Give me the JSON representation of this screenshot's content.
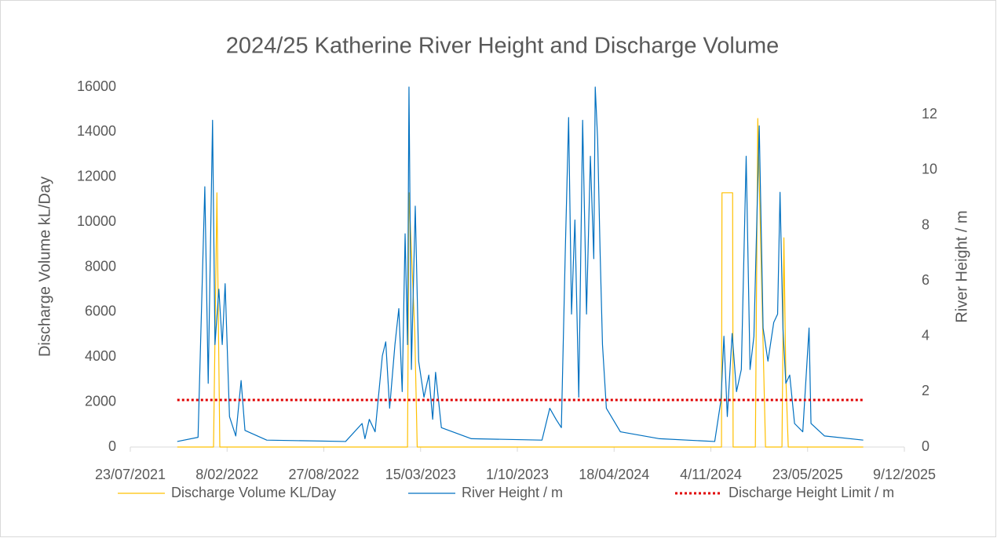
{
  "chart_data": {
    "type": "line",
    "title": "2024/25 Katherine River Height and Discharge Volume",
    "y_label": "Discharge Volume kL/Day",
    "y2_label": "River Height / m",
    "xlim": [
      "23/07/2021",
      "9/12/2025"
    ],
    "xticks": [
      "23/07/2021",
      "8/02/2022",
      "27/08/2022",
      "15/03/2023",
      "1/10/2023",
      "18/04/2024",
      "4/11/2024",
      "23/05/2025",
      "9/12/2025"
    ],
    "ylim": [
      0,
      16000
    ],
    "yticks": [
      0,
      2000,
      4000,
      6000,
      8000,
      10000,
      12000,
      14000,
      16000
    ],
    "y2lim": [
      0,
      13
    ],
    "y2ticks": [
      0,
      2,
      4,
      6,
      8,
      10,
      12
    ],
    "grid": false,
    "legend": "bottom",
    "series": [
      {
        "name": "Discharge Volume KL/Day",
        "color": "#ffc000",
        "axis": "y",
        "x": [
          "28/10/2021",
          "11/01/2022",
          "18/01/2022",
          "24/01/2022",
          "16/02/2023",
          "19/02/2023",
          "3/03/2023",
          "8/03/2023",
          "26/11/2024",
          "27/11/2024",
          "19/12/2024",
          "20/12/2024",
          "4/02/2025",
          "9/02/2025",
          "25/02/2025",
          "31/03/2025",
          "4/04/2025",
          "8/04/2025",
          "13/04/2025",
          "15/09/2025"
        ],
        "values": [
          0,
          0,
          11300,
          0,
          0,
          11300,
          5100,
          0,
          0,
          11300,
          11300,
          0,
          0,
          14600,
          0,
          0,
          9300,
          3100,
          0,
          0
        ]
      },
      {
        "name": "River Height / m",
        "color": "#0070c0",
        "axis": "y2",
        "x": [
          "28/10/2021",
          "10/12/2021",
          "24/12/2021",
          "31/12/2021",
          "9/01/2022",
          "14/01/2022",
          "22/01/2022",
          "29/01/2022",
          "4/02/2022",
          "13/02/2022",
          "26/02/2022",
          "9/03/2022",
          "17/03/2022",
          "1/05/2022",
          "11/10/2022",
          "14/11/2022",
          "20/11/2022",
          "29/11/2022",
          "11/12/2022",
          "26/12/2022",
          "2/01/2023",
          "10/01/2023",
          "21/01/2023",
          "29/01/2023",
          "5/02/2023",
          "11/02/2023",
          "16/02/2023",
          "19/02/2023",
          "24/02/2023",
          "4/03/2023",
          "11/03/2023",
          "22/03/2023",
          "1/04/2023",
          "9/04/2023",
          "15/04/2023",
          "27/04/2023",
          "28/06/2023",
          "21/11/2023",
          "7/12/2023",
          "20/12/2023",
          "31/12/2023",
          "8/01/2024",
          "15/01/2024",
          "21/01/2024",
          "28/01/2024",
          "5/02/2024",
          "13/02/2024",
          "21/02/2024",
          "29/02/2024",
          "7/03/2024",
          "10/03/2024",
          "15/03/2024",
          "20/03/2024",
          "25/03/2024",
          "2/04/2024",
          "1/05/2024",
          "21/07/2024",
          "12/11/2024",
          "25/11/2024",
          "1/12/2024",
          "8/12/2024",
          "18/12/2024",
          "27/12/2024",
          "6/01/2025",
          "16/01/2025",
          "24/01/2025",
          "1/02/2025",
          "12/02/2025",
          "20/02/2025",
          "2/03/2025",
          "14/03/2025",
          "22/03/2025",
          "27/03/2025",
          "2/04/2025",
          "8/04/2025",
          "16/04/2025",
          "26/04/2025",
          "13/05/2025",
          "26/05/2025",
          "30/05/2025",
          "27/06/2025",
          "15/09/2025"
        ],
        "values": [
          0.2,
          0.35,
          9.4,
          2.3,
          11.8,
          3.7,
          5.7,
          3.7,
          5.9,
          1.1,
          0.4,
          2.4,
          0.6,
          0.25,
          0.2,
          0.85,
          0.3,
          1.0,
          0.55,
          3.3,
          3.8,
          1.4,
          3.7,
          5.0,
          2.0,
          7.7,
          3.7,
          13,
          2.8,
          8.7,
          3.1,
          1.8,
          2.6,
          1.0,
          2.7,
          0.7,
          0.3,
          0.25,
          1.4,
          1.0,
          0.7,
          7.0,
          11.9,
          4.8,
          8.2,
          1.8,
          11.8,
          4.8,
          10.5,
          6.8,
          13.0,
          11.1,
          7.1,
          3.7,
          1.4,
          0.55,
          0.3,
          0.2,
          1.7,
          4.0,
          1.1,
          4.1,
          2.0,
          2.8,
          10.5,
          2.8,
          4.0,
          11.6,
          4.3,
          3.1,
          4.5,
          4.8,
          9.2,
          4.3,
          2.3,
          2.6,
          0.85,
          0.55,
          4.3,
          0.85,
          0.4,
          0.25
        ]
      },
      {
        "name": "Discharge Height Limit / m",
        "color": "#e00000",
        "axis": "y2",
        "dash": "dotted",
        "x": [
          "28/10/2021",
          "15/09/2025"
        ],
        "values": [
          1.7,
          1.7
        ]
      }
    ]
  }
}
